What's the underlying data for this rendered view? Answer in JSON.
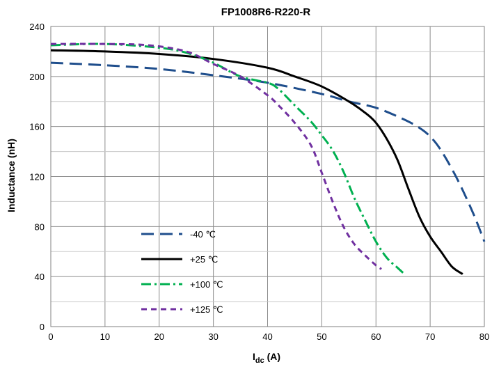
{
  "chart_data": {
    "type": "line",
    "title": "FP1008R6-R220-R",
    "xlabel_main": "I",
    "xlabel_sub": "dc",
    "xlabel_unit": " (A)",
    "ylabel": "Inductance (nH)",
    "xlim": [
      0,
      80
    ],
    "ylim": [
      0,
      240
    ],
    "x_ticks": [
      "0",
      "10",
      "20",
      "30",
      "40",
      "50",
      "60",
      "70",
      "80"
    ],
    "y_ticks": [
      "0",
      "40",
      "80",
      "120",
      "160",
      "200",
      "240"
    ],
    "grid": true,
    "legend_position": "lower-left inside plot",
    "series": [
      {
        "name": "-40 ℃",
        "color": "#1f4e8c",
        "style": "long-dash",
        "x": [
          0,
          10,
          20,
          30,
          40,
          50,
          55,
          60,
          65,
          68,
          70,
          72,
          75,
          78,
          80
        ],
        "y": [
          211,
          209,
          206,
          201,
          195,
          186,
          180,
          175,
          166,
          159,
          152,
          141,
          118,
          90,
          68
        ]
      },
      {
        "name": "+25 ℃",
        "color": "#000000",
        "style": "solid",
        "x": [
          0,
          10,
          20,
          30,
          40,
          45,
          50,
          55,
          58,
          60,
          62,
          64,
          66,
          68,
          70,
          72,
          74,
          76
        ],
        "y": [
          221,
          220,
          218,
          214,
          207,
          200,
          192,
          180,
          171,
          163,
          150,
          133,
          110,
          88,
          72,
          60,
          48,
          42
        ]
      },
      {
        "name": "+100 ℃",
        "color": "#00b050",
        "style": "dash-dot",
        "x": [
          0,
          10,
          20,
          25,
          30,
          35,
          40,
          42,
          45,
          48,
          50,
          52,
          54,
          56,
          58,
          60,
          62,
          64,
          65
        ],
        "y": [
          225,
          226,
          223,
          219,
          211,
          200,
          195,
          190,
          177,
          164,
          153,
          141,
          124,
          103,
          85,
          68,
          55,
          47,
          43
        ]
      },
      {
        "name": "+125 ℃",
        "color": "#7030a0",
        "style": "short-dash",
        "x": [
          0,
          10,
          18,
          25,
          30,
          35,
          40,
          42,
          45,
          48,
          50,
          52,
          54,
          56,
          58,
          60,
          61
        ],
        "y": [
          226,
          226,
          225,
          220,
          210,
          200,
          185,
          177,
          163,
          145,
          123,
          100,
          80,
          66,
          57,
          49,
          46
        ]
      }
    ]
  }
}
